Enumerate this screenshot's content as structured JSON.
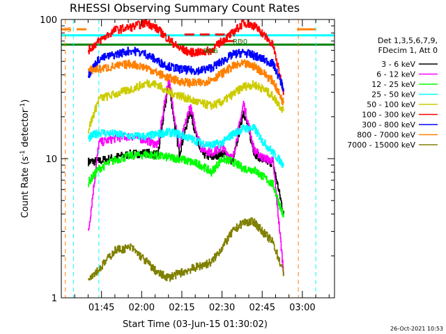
{
  "chart_data": {
    "type": "line",
    "title": "RHESSI Observing Summary Count Rates",
    "xlabel": "Start Time (03-Jun-15 01:30:02)",
    "ylabel": "Count Rate (s⁻¹ detector⁻¹)",
    "ylabel_main": "Count Rate (s",
    "ylabel_exp1": "-1",
    "ylabel_mid": " detector",
    "ylabel_exp2": "-1",
    "ylabel_end": ")",
    "y_scale": "log",
    "ylim": [
      1,
      100
    ],
    "y_ticks": [
      {
        "value": 1,
        "label": "1"
      },
      {
        "value": 10,
        "label": "10"
      },
      {
        "value": 100,
        "label": "100"
      }
    ],
    "xlim_minutes": [
      0,
      102
    ],
    "x_ticks": [
      {
        "minute": 15,
        "label": "01:45"
      },
      {
        "minute": 30,
        "label": "02:00"
      },
      {
        "minute": 45,
        "label": "02:15"
      },
      {
        "minute": 60,
        "label": "02:30"
      },
      {
        "minute": 75,
        "label": "02:45"
      },
      {
        "minute": 90,
        "label": "03:00"
      }
    ],
    "legend_header": [
      "Det 1,3,5,6,7,9,",
      "FDecim 1, Att 0"
    ],
    "legend_position": "right",
    "timestamp": "26-Oct-2021 10:53",
    "series": [
      {
        "name": "3 - 6 keV",
        "color": "#000000",
        "x": [
          10,
          14,
          20,
          26,
          32,
          36,
          40,
          44,
          48,
          52,
          56,
          60,
          64,
          68,
          72,
          75,
          79,
          83
        ],
        "y": [
          9.5,
          9.6,
          10.2,
          10.8,
          11.0,
          10.6,
          35.0,
          10.8,
          22.0,
          11.0,
          10.2,
          11.0,
          9.5,
          22.0,
          11.0,
          9.8,
          9.3,
          4.0
        ]
      },
      {
        "name": "6 - 12 keV",
        "color": "#ff00ff",
        "x": [
          10,
          14,
          20,
          26,
          32,
          36,
          40,
          44,
          48,
          52,
          56,
          60,
          64,
          68,
          72,
          75,
          79,
          83
        ],
        "y": [
          2.9,
          13.0,
          14.0,
          14.5,
          13.5,
          12.5,
          38.0,
          12.0,
          24.0,
          12.0,
          11.0,
          12.0,
          10.0,
          25.0,
          11.5,
          10.2,
          9.6,
          1.5
        ]
      },
      {
        "name": "12 - 25 keV",
        "color": "#00ff00",
        "x": [
          10,
          14,
          20,
          26,
          32,
          36,
          40,
          44,
          48,
          52,
          56,
          60,
          64,
          68,
          72,
          75,
          79,
          83
        ],
        "y": [
          6.7,
          8.5,
          9.8,
          10.5,
          10.7,
          10.5,
          10.2,
          10.0,
          9.5,
          9.0,
          8.0,
          10.0,
          9.5,
          8.5,
          8.3,
          7.5,
          6.5,
          3.8
        ]
      },
      {
        "name": "25 - 50 keV",
        "color": "#00ffff",
        "x": [
          10,
          14,
          20,
          26,
          32,
          36,
          40,
          44,
          48,
          52,
          56,
          60,
          64,
          68,
          72,
          75,
          79,
          83
        ],
        "y": [
          14.0,
          15.5,
          15.0,
          14.5,
          14.5,
          15.0,
          15.5,
          15.0,
          14.0,
          13.0,
          12.5,
          13.0,
          15.0,
          16.5,
          16.5,
          13.5,
          11.0,
          9.0
        ]
      },
      {
        "name": "50 - 100 keV",
        "color": "#cccc00",
        "x": [
          10,
          14,
          20,
          26,
          32,
          36,
          40,
          44,
          48,
          52,
          56,
          60,
          64,
          68,
          72,
          75,
          79,
          83
        ],
        "y": [
          16.0,
          27.0,
          29.0,
          31.5,
          35.0,
          34.0,
          30.0,
          28.5,
          26.5,
          25.0,
          24.0,
          25.5,
          29.0,
          33.0,
          34.0,
          32.0,
          28.0,
          22.0
        ]
      },
      {
        "name": "100 - 300 keV",
        "color": "#ff0000",
        "x": [
          10,
          14,
          20,
          26,
          32,
          36,
          40,
          44,
          48,
          52,
          56,
          60,
          64,
          68,
          72,
          75,
          79,
          83
        ],
        "y": [
          60.0,
          70.0,
          84.0,
          88.0,
          95.0,
          85.0,
          72.0,
          62.0,
          58.0,
          58.0,
          60.0,
          70.0,
          80.0,
          95.0,
          90.0,
          80.0,
          65.0,
          30.0
        ]
      },
      {
        "name": "300 - 800 keV",
        "color": "#0000ff",
        "x": [
          10,
          14,
          20,
          26,
          32,
          36,
          40,
          44,
          48,
          52,
          56,
          60,
          64,
          68,
          72,
          75,
          79,
          83
        ],
        "y": [
          40.0,
          52.0,
          56.0,
          60.0,
          56.0,
          50.0,
          46.0,
          44.0,
          43.0,
          43.0,
          45.0,
          50.0,
          56.0,
          58.0,
          55.0,
          52.0,
          48.0,
          32.0
        ]
      },
      {
        "name": "800 - 7000 keV",
        "color": "#ff8000",
        "x": [
          10,
          14,
          20,
          26,
          32,
          36,
          40,
          44,
          48,
          52,
          56,
          60,
          64,
          68,
          72,
          75,
          79,
          83
        ],
        "y": [
          43.0,
          44.0,
          46.0,
          48.0,
          45.0,
          41.0,
          38.0,
          36.0,
          35.0,
          35.0,
          37.0,
          41.0,
          46.0,
          48.0,
          46.0,
          42.0,
          36.0,
          25.0
        ]
      },
      {
        "name": "7000 - 15000 keV",
        "color": "#808000",
        "x": [
          10,
          14,
          20,
          26,
          32,
          36,
          40,
          44,
          48,
          52,
          56,
          60,
          64,
          68,
          72,
          75,
          79,
          83
        ],
        "y": [
          1.4,
          1.6,
          2.2,
          2.3,
          1.8,
          1.5,
          1.4,
          1.5,
          1.6,
          1.7,
          1.8,
          2.3,
          3.0,
          3.5,
          3.5,
          3.0,
          2.5,
          1.5
        ]
      }
    ],
    "annotations": [
      {
        "label": "S",
        "minute": 1,
        "value": 85,
        "color": "#ff8000"
      },
      {
        "label": "RD0",
        "minute": 63,
        "value": 70,
        "color": "#008000"
      },
      {
        "label": "RD6",
        "minute": 52,
        "value": 60,
        "color": "#008000"
      }
    ],
    "reference_lines": [
      {
        "value": 66,
        "color": "#008000",
        "dash": "solid",
        "x0": 0,
        "x1": 102
      },
      {
        "value": 77,
        "color": "#00ffff",
        "dash": "solid",
        "x0": 0,
        "x1": 102
      },
      {
        "value": 85,
        "color": "#ff8000",
        "dash": "dashed",
        "x0": 0,
        "x1": 10
      },
      {
        "value": 85,
        "color": "#ff8000",
        "dash": "solid",
        "x0": 88,
        "x1": 95
      },
      {
        "value": 78,
        "color": "#ff0000",
        "dash": "dashed",
        "x0": 46,
        "x1": 61
      },
      {
        "value": 70,
        "color": "#ff0000",
        "dash": "dashed",
        "x0": 61,
        "x1": 67
      }
    ],
    "vertical_markers": [
      {
        "minute": 1.5,
        "color": "#ff8000"
      },
      {
        "minute": 4.5,
        "color": "#00ffff"
      },
      {
        "minute": 14.0,
        "color": "#00ffff"
      },
      {
        "minute": 88.5,
        "color": "#ff8000"
      },
      {
        "minute": 95.0,
        "color": "#00ffff"
      }
    ]
  }
}
